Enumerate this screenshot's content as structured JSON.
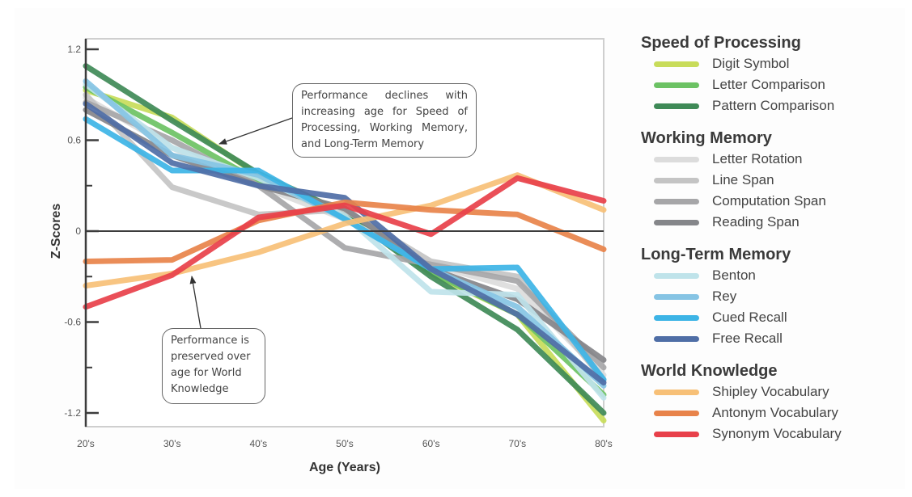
{
  "chart_data": {
    "type": "line",
    "title": "",
    "xlabel": "Age (Years)",
    "ylabel": "Z-Scores",
    "x": [
      "20's",
      "30's",
      "40's",
      "50's",
      "60's",
      "70's",
      "80's"
    ],
    "ylim": [
      -1.3,
      1.3
    ],
    "yticks": [
      1.2,
      0.6,
      0,
      -0.6,
      -1.2
    ],
    "ytick_labels": [
      "1.2",
      "0.6",
      "0",
      "-0.6",
      "-1.2"
    ],
    "minor_yticks": [
      0.3,
      -0.3,
      -0.9
    ],
    "zero_line": true,
    "grid": false,
    "legend_placement": "right",
    "groups": [
      {
        "name": "Speed of Processing",
        "series": [
          {
            "name": "Digit Symbol",
            "color": "#c8dc5a",
            "values": [
              0.93,
              0.75,
              0.37,
              0.12,
              -0.28,
              -0.55,
              -1.25
            ]
          },
          {
            "name": "Letter Comparison",
            "color": "#6cc264",
            "values": [
              0.95,
              0.65,
              0.33,
              0.1,
              -0.27,
              -0.55,
              -1.08
            ]
          },
          {
            "name": "Pattern Comparison",
            "color": "#3f8a57",
            "values": [
              1.09,
              0.73,
              0.38,
              0.12,
              -0.3,
              -0.65,
              -1.2
            ]
          }
        ]
      },
      {
        "name": "Working Memory",
        "series": [
          {
            "name": "Letter Rotation",
            "color": "#dcdcdc",
            "values": [
              0.88,
              0.55,
              0.3,
              0.08,
              -0.22,
              -0.38,
              -0.95
            ]
          },
          {
            "name": "Line Span",
            "color": "#c4c4c4",
            "values": [
              0.9,
              0.29,
              0.11,
              0.14,
              -0.2,
              -0.3,
              -0.98
            ]
          },
          {
            "name": "Computation Span",
            "color": "#a6a6a8",
            "values": [
              0.85,
              0.6,
              0.3,
              -0.11,
              -0.22,
              -0.33,
              -0.9
            ]
          },
          {
            "name": "Reading Span",
            "color": "#85868a",
            "values": [
              0.8,
              0.5,
              0.3,
              0.15,
              -0.25,
              -0.45,
              -0.85
            ]
          }
        ]
      },
      {
        "name": "Long-Term Memory",
        "series": [
          {
            "name": "Benton",
            "color": "#bfe3ea",
            "values": [
              0.97,
              0.55,
              0.35,
              0.1,
              -0.4,
              -0.42,
              -1.1
            ]
          },
          {
            "name": "Rey",
            "color": "#86c4e4",
            "values": [
              0.99,
              0.5,
              0.37,
              0.08,
              -0.25,
              -0.5,
              -1.02
            ]
          },
          {
            "name": "Cued Recall",
            "color": "#3db4e6",
            "values": [
              0.74,
              0.4,
              0.4,
              0.08,
              -0.25,
              -0.24,
              -0.98
            ]
          },
          {
            "name": "Free Recall",
            "color": "#4f6ea6",
            "values": [
              0.84,
              0.45,
              0.3,
              0.22,
              -0.25,
              -0.55,
              -1.0
            ]
          }
        ]
      },
      {
        "name": "World Knowledge",
        "series": [
          {
            "name": "Shipley Vocabulary",
            "color": "#f7c077",
            "values": [
              -0.36,
              -0.28,
              -0.14,
              0.05,
              0.17,
              0.37,
              0.14
            ]
          },
          {
            "name": "Antonym Vocabulary",
            "color": "#e8834a",
            "values": [
              -0.2,
              -0.19,
              0.07,
              0.19,
              0.14,
              0.11,
              -0.12
            ]
          },
          {
            "name": "Synonym Vocabulary",
            "color": "#e8404a",
            "values": [
              -0.5,
              -0.29,
              0.09,
              0.17,
              -0.02,
              0.35,
              0.2
            ]
          }
        ]
      }
    ],
    "annotations": [
      {
        "text": "Performance declines with increasing age for Speed of Processing, Working Memory, and Long-Term Memory",
        "points_to": "declining series near 30's-40's"
      },
      {
        "text": "Performance is preserved over age for World Knowledge",
        "points_to": "World Knowledge series near 30's"
      }
    ]
  }
}
